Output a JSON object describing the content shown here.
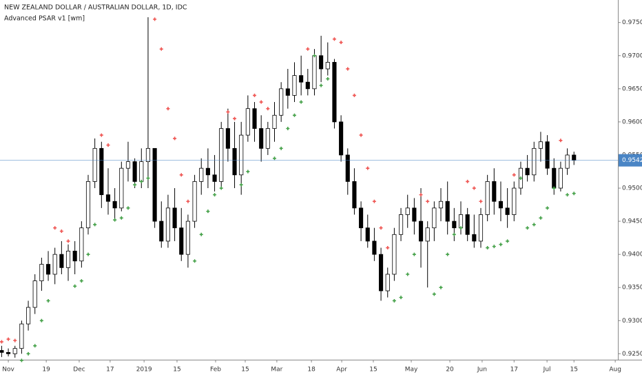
{
  "chart_data": {
    "type": "candlestick",
    "title": "NEW ZEALAND DOLLAR / AUSTRALIAN DOLLAR, 1D, IDC",
    "indicator": "Advanced PSAR v1 [wm]",
    "x": [
      0,
      2,
      4,
      6,
      8,
      10,
      12,
      14,
      16,
      18,
      20,
      22,
      24,
      26,
      28,
      30,
      32,
      34,
      36,
      38,
      40,
      42,
      44,
      46,
      48,
      50,
      52,
      54,
      56,
      58,
      60,
      62,
      64,
      66,
      68,
      70,
      72,
      74,
      76,
      78,
      80,
      82,
      84,
      86,
      88,
      90,
      92,
      94,
      96,
      98,
      100,
      102,
      104,
      106,
      108,
      110,
      112,
      114,
      116,
      118,
      120,
      122,
      124,
      126,
      128,
      130,
      132,
      134,
      136,
      138,
      140,
      142,
      144,
      146,
      148,
      150,
      152,
      154,
      156,
      158,
      160,
      162,
      164,
      166,
      168,
      170,
      172
    ],
    "open": [
      0.9255,
      0.9252,
      0.925,
      0.9258,
      0.9295,
      0.932,
      0.936,
      0.9385,
      0.937,
      0.94,
      0.938,
      0.9405,
      0.939,
      0.944,
      0.951,
      0.956,
      0.949,
      0.948,
      0.947,
      0.953,
      0.954,
      0.951,
      0.954,
      0.956,
      0.945,
      0.942,
      0.947,
      0.944,
      0.94,
      0.945,
      0.951,
      0.953,
      0.952,
      0.951,
      0.959,
      0.956,
      0.952,
      0.958,
      0.962,
      0.959,
      0.956,
      0.959,
      0.961,
      0.965,
      0.964,
      0.967,
      0.966,
      0.965,
      0.97,
      0.968,
      0.969,
      0.96,
      0.955,
      0.951,
      0.947,
      0.944,
      0.942,
      0.94,
      0.9345,
      0.937,
      0.943,
      0.946,
      0.947,
      0.945,
      0.942,
      0.944,
      0.947,
      0.948,
      0.945,
      0.944,
      0.946,
      0.943,
      0.942,
      0.946,
      0.951,
      0.948,
      0.947,
      0.946,
      0.95,
      0.953,
      0.952,
      0.956,
      0.957,
      0.953,
      0.95,
      0.953,
      0.955
    ],
    "high": [
      0.9262,
      0.9258,
      0.9262,
      0.93,
      0.933,
      0.937,
      0.9395,
      0.9405,
      0.941,
      0.942,
      0.9415,
      0.942,
      0.945,
      0.952,
      0.9575,
      0.957,
      0.953,
      0.95,
      0.954,
      0.957,
      0.9545,
      0.956,
      0.9758,
      0.956,
      0.948,
      0.949,
      0.95,
      0.947,
      0.946,
      0.952,
      0.9545,
      0.956,
      0.955,
      0.96,
      0.962,
      0.96,
      0.96,
      0.964,
      0.963,
      0.961,
      0.96,
      0.963,
      0.966,
      0.968,
      0.969,
      0.97,
      0.968,
      0.971,
      0.973,
      0.972,
      0.9695,
      0.961,
      0.956,
      0.953,
      0.948,
      0.946,
      0.944,
      0.941,
      0.938,
      0.944,
      0.947,
      0.949,
      0.9485,
      0.95,
      0.945,
      0.948,
      0.95,
      0.951,
      0.947,
      0.948,
      0.947,
      0.946,
      0.947,
      0.952,
      0.953,
      0.951,
      0.95,
      0.951,
      0.954,
      0.955,
      0.957,
      0.9585,
      0.958,
      0.9545,
      0.954,
      0.956,
      0.9555
    ],
    "low": [
      0.9245,
      0.9246,
      0.9244,
      0.925,
      0.9285,
      0.931,
      0.9345,
      0.936,
      0.9355,
      0.937,
      0.936,
      0.937,
      0.938,
      0.943,
      0.95,
      0.947,
      0.946,
      0.945,
      0.9465,
      0.951,
      0.95,
      0.95,
      0.95,
      0.944,
      0.941,
      0.941,
      0.942,
      0.939,
      0.938,
      0.944,
      0.949,
      0.95,
      0.9495,
      0.95,
      0.954,
      0.95,
      0.949,
      0.957,
      0.957,
      0.954,
      0.955,
      0.957,
      0.96,
      0.962,
      0.963,
      0.964,
      0.964,
      0.964,
      0.966,
      0.967,
      0.959,
      0.954,
      0.949,
      0.946,
      0.942,
      0.941,
      0.939,
      0.933,
      0.9335,
      0.936,
      0.942,
      0.944,
      0.943,
      0.938,
      0.935,
      0.942,
      0.945,
      0.943,
      0.942,
      0.943,
      0.942,
      0.941,
      0.941,
      0.945,
      0.946,
      0.945,
      0.944,
      0.945,
      0.949,
      0.951,
      0.951,
      0.954,
      0.952,
      0.949,
      0.9495,
      0.952,
      0.9535
    ],
    "close": [
      0.9252,
      0.925,
      0.9258,
      0.9295,
      0.932,
      0.936,
      0.9385,
      0.937,
      0.94,
      0.938,
      0.9405,
      0.939,
      0.944,
      0.951,
      0.956,
      0.949,
      0.948,
      0.947,
      0.953,
      0.954,
      0.951,
      0.954,
      0.956,
      0.945,
      0.942,
      0.947,
      0.944,
      0.94,
      0.945,
      0.951,
      0.953,
      0.952,
      0.951,
      0.959,
      0.956,
      0.952,
      0.958,
      0.962,
      0.959,
      0.956,
      0.959,
      0.961,
      0.965,
      0.964,
      0.967,
      0.966,
      0.965,
      0.97,
      0.968,
      0.969,
      0.96,
      0.955,
      0.951,
      0.947,
      0.944,
      0.942,
      0.94,
      0.9345,
      0.937,
      0.943,
      0.946,
      0.947,
      0.945,
      0.942,
      0.944,
      0.947,
      0.948,
      0.945,
      0.944,
      0.946,
      0.943,
      0.942,
      0.946,
      0.951,
      0.948,
      0.947,
      0.946,
      0.95,
      0.953,
      0.952,
      0.956,
      0.957,
      0.953,
      0.95,
      0.953,
      0.955,
      0.9542
    ],
    "psar": [
      0.9268,
      0.9272,
      0.927,
      0.924,
      0.925,
      0.9262,
      0.93,
      0.933,
      0.944,
      0.9435,
      0.942,
      0.9352,
      0.936,
      0.94,
      0.9445,
      0.958,
      0.9565,
      0.9452,
      0.9455,
      0.947,
      0.9505,
      0.951,
      0.9515,
      0.9755,
      0.971,
      0.962,
      0.9575,
      0.952,
      0.948,
      0.939,
      0.943,
      0.9465,
      0.949,
      0.95,
      0.9615,
      0.9605,
      0.9505,
      0.9525,
      0.964,
      0.963,
      0.962,
      0.9545,
      0.956,
      0.959,
      0.961,
      0.963,
      0.971,
      0.97,
      0.9655,
      0.9665,
      0.9725,
      0.972,
      0.968,
      0.964,
      0.958,
      0.953,
      0.948,
      0.944,
      0.941,
      0.933,
      0.9335,
      0.937,
      0.94,
      0.949,
      0.948,
      0.934,
      0.935,
      0.94,
      0.943,
      0.944,
      0.951,
      0.95,
      0.948,
      0.941,
      0.9412,
      0.9415,
      0.942,
      0.952,
      0.9515,
      0.944,
      0.9445,
      0.9455,
      0.947,
      0.95,
      0.9572,
      0.949,
      0.9492
    ],
    "up_color": "#ffffff",
    "down_color": "#000000",
    "psar_above_color": "#ef5350",
    "psar_below_color": "#43a047",
    "last_price": {
      "value": 0.9542,
      "label": "0.9542"
    },
    "last_price_color": "#4a85c5",
    "xlim": [
      -0.5,
      185.2
    ],
    "ylim": [
      0.9241,
      0.9784
    ],
    "xticks": [
      {
        "value": 2.0,
        "label": "Nov"
      },
      {
        "value": 13.4,
        "label": "19"
      },
      {
        "value": 23.3,
        "label": "Dec"
      },
      {
        "value": 32.6,
        "label": "17"
      },
      {
        "value": 42.8,
        "label": "2019"
      },
      {
        "value": 52.7,
        "label": "15"
      },
      {
        "value": 64.3,
        "label": "Feb"
      },
      {
        "value": 73.2,
        "label": "15"
      },
      {
        "value": 82.7,
        "label": "Mar"
      },
      {
        "value": 93.1,
        "label": "18"
      },
      {
        "value": 102.2,
        "label": "Apr"
      },
      {
        "value": 111.7,
        "label": "15"
      },
      {
        "value": 123.1,
        "label": "May"
      },
      {
        "value": 134.7,
        "label": "20"
      },
      {
        "value": 144.4,
        "label": "Jun"
      },
      {
        "value": 154.0,
        "label": "17"
      },
      {
        "value": 163.9,
        "label": "Jul"
      },
      {
        "value": 172.0,
        "label": "15"
      },
      {
        "value": 184.4,
        "label": "Aug"
      }
    ],
    "yticks": [
      {
        "value": 0.925,
        "label": "0.9250"
      },
      {
        "value": 0.93,
        "label": "0.9300"
      },
      {
        "value": 0.935,
        "label": "0.9350"
      },
      {
        "value": 0.94,
        "label": "0.9400"
      },
      {
        "value": 0.945,
        "label": "0.9450"
      },
      {
        "value": 0.95,
        "label": "0.9500"
      },
      {
        "value": 0.955,
        "label": "0.9550"
      },
      {
        "value": 0.96,
        "label": "0.9600"
      },
      {
        "value": 0.965,
        "label": "0.9650"
      },
      {
        "value": 0.97,
        "label": "0.9700"
      },
      {
        "value": 0.975,
        "label": "0.9750"
      }
    ],
    "grid": false
  }
}
